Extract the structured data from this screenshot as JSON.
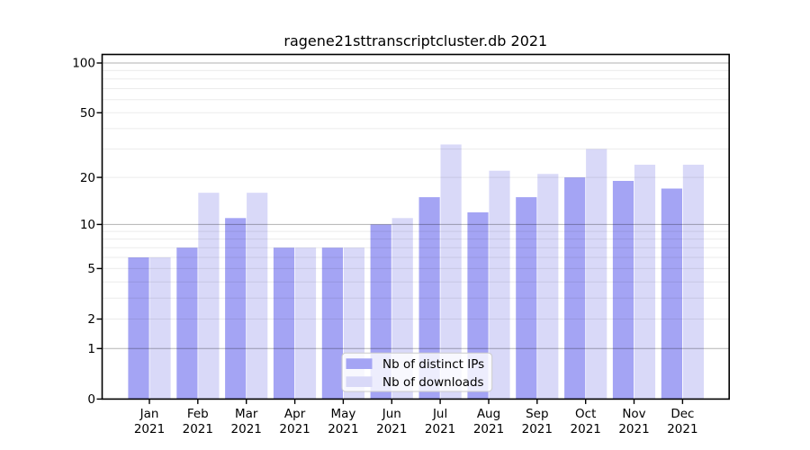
{
  "chart_data": {
    "type": "bar",
    "title": "ragene21sttranscriptcluster.db 2021",
    "year": "2021",
    "categories": [
      "Jan",
      "Feb",
      "Mar",
      "Apr",
      "May",
      "Jun",
      "Jul",
      "Aug",
      "Sep",
      "Oct",
      "Nov",
      "Dec"
    ],
    "series": [
      {
        "name": "Nb of distinct IPs",
        "color": "#a4a4f4",
        "values": [
          6,
          7,
          11,
          7,
          7,
          10,
          15,
          12,
          15,
          20,
          19,
          17
        ]
      },
      {
        "name": "Nb of downloads",
        "color": "#d9d9f8",
        "values": [
          6,
          16,
          16,
          7,
          7,
          11,
          32,
          22,
          21,
          30,
          24,
          24
        ]
      }
    ],
    "xlabel": "",
    "ylabel": "",
    "y_scale": "log1p",
    "y_ticks": [
      0,
      1,
      2,
      5,
      10,
      20,
      50,
      100
    ],
    "y_major_gridlines": [
      1,
      10,
      100
    ],
    "y_minor_gridlines": [
      2,
      3,
      4,
      5,
      6,
      7,
      8,
      9,
      20,
      30,
      40,
      50,
      60,
      70,
      80,
      90
    ],
    "ylim": [
      0,
      113
    ],
    "grid": true,
    "legend_position": "bottom-center",
    "colors": {
      "major_grid": "rgba(0,0,0,0.30)",
      "minor_grid": "rgba(0,0,0,0.08)",
      "spine": "#000000",
      "legend_border": "#cbcbcb",
      "legend_bg": "rgba(255,255,255,0.8)"
    }
  }
}
